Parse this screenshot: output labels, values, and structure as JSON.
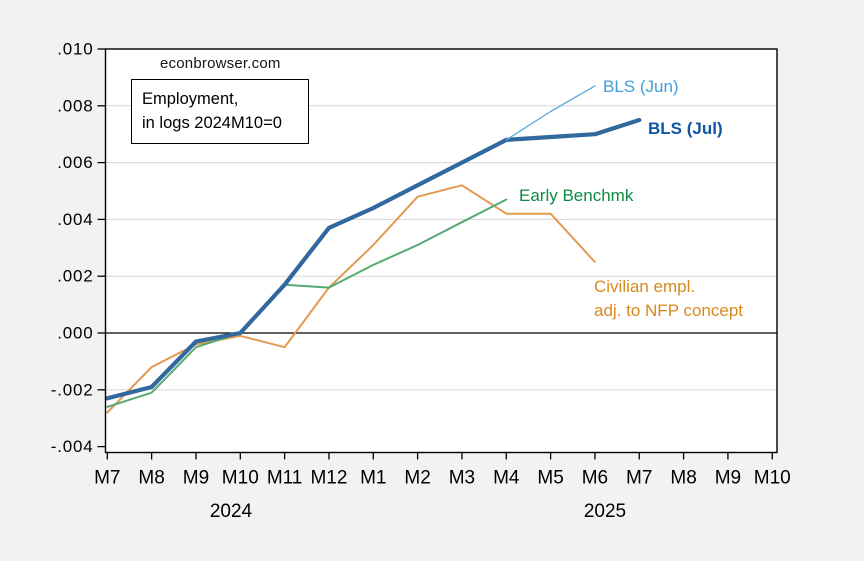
{
  "watermark": "econbrowser.com",
  "title_box": {
    "line1": "Employment,",
    "line2": "in logs 2024M10=0"
  },
  "chart_data": {
    "type": "line",
    "title": "Employment, in logs 2024M10=0",
    "x_axis": {
      "tick_labels": [
        "M7",
        "M8",
        "M9",
        "M10",
        "M11",
        "M12",
        "M1",
        "M2",
        "M3",
        "M4",
        "M5",
        "M6",
        "M7",
        "M8",
        "M9",
        "M10"
      ],
      "year_labels": [
        "2024",
        "2025"
      ],
      "note": "Monthly, 2024M7 through 2025M10 shown on axis"
    },
    "y_axis": {
      "ticks": [
        {
          "label": ".010",
          "value": 0.01
        },
        {
          "label": ".008",
          "value": 0.008
        },
        {
          "label": ".006",
          "value": 0.006
        },
        {
          "label": ".004",
          "value": 0.004
        },
        {
          "label": ".002",
          "value": 0.002
        },
        {
          "label": ".000",
          "value": 0.0
        },
        {
          "label": "-.002",
          "value": -0.002
        },
        {
          "label": "-.004",
          "value": -0.004
        }
      ],
      "range": [
        -0.004207,
        0.01
      ]
    },
    "grid_values": [
      0.008,
      0.006,
      0.004,
      0.002,
      -0.002
    ],
    "zero_line_value": 0.0,
    "series": [
      {
        "key": "civilian-empl",
        "name": "Civilian empl. adj. to NFP concept",
        "color": "#e3995ا0",
        "line_width": 2,
        "start_index": 0,
        "values": [
          -0.0028,
          -0.0012,
          -0.0004,
          -0.0001,
          -0.0005,
          0.0016,
          0.0031,
          0.0048,
          0.0052,
          0.0042,
          0.0042,
          0.0025
        ]
      },
      {
        "key": "early-benchmk",
        "name": "Early Benchmk",
        "color": "#55a973",
        "line_width": 2,
        "start_index": 0,
        "values": [
          -0.0026,
          -0.0021,
          -0.0005,
          0.0,
          0.0017,
          0.0016,
          0.0024,
          0.0031,
          0.0039,
          0.0047
        ]
      },
      {
        "key": "bls-jul",
        "name": "BLS (Jul)",
        "color": "#31689e",
        "line_width": 4.2,
        "start_index": 0,
        "values": [
          -0.0023,
          -0.0019,
          -0.0003,
          0.0,
          0.0017,
          0.0037,
          0.0044,
          0.0052,
          0.006,
          0.0068,
          0.0069,
          0.007,
          0.0075
        ]
      },
      {
        "key": "bls-jun",
        "name": "BLS (Jun)",
        "color": "#5cabdb",
        "line_width": 1.3,
        "start_index": 9,
        "values": [
          0.0068,
          0.0078,
          0.0087
        ]
      }
    ],
    "annotations": [
      {
        "key": "bls-jun",
        "text": "BLS (Jun)",
        "color": "#3f9ed8",
        "bold": false
      },
      {
        "key": "bls-jul",
        "text": "BLS (Jul)",
        "color": "#0f55a3",
        "bold": true
      },
      {
        "key": "early-benchmk",
        "text": "Early Benchmk",
        "color": "#0c8a41",
        "bold": false
      },
      {
        "key": "civ-line1",
        "text": "Civilian empl.",
        "color": "#d8891c",
        "bold": false
      },
      {
        "key": "civ-line2",
        "text": "adj. to NFP concept",
        "color": "#d8891c",
        "bold": false
      }
    ],
    "colors": {
      "plot_bg": "#ffffff",
      "page_bg": "#f2f2f2",
      "grid": "#d7d7d7",
      "frame": "#000000",
      "civilian_line": "#e39950"
    },
    "legend_position": "inline-annotations",
    "grid_on": true
  }
}
